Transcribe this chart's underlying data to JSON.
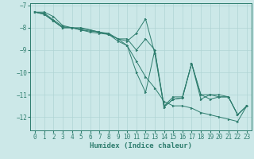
{
  "xlabel": "Humidex (Indice chaleur)",
  "xlim": [
    -0.5,
    23.5
  ],
  "ylim": [
    -12.6,
    -6.9
  ],
  "yticks": [
    -7,
    -8,
    -9,
    -10,
    -11,
    -12
  ],
  "xticks": [
    0,
    1,
    2,
    3,
    4,
    5,
    6,
    7,
    8,
    9,
    10,
    11,
    12,
    13,
    14,
    15,
    16,
    17,
    18,
    19,
    20,
    21,
    22,
    23
  ],
  "bg_color": "#cce8e8",
  "grid_color": "#b0d4d4",
  "line_color": "#2e7d6e",
  "series": [
    {
      "x": [
        0,
        1,
        2,
        3,
        4,
        5,
        6,
        7,
        8,
        9,
        10,
        11,
        12,
        13,
        14,
        15,
        16,
        17,
        18,
        19,
        20,
        21,
        22,
        23
      ],
      "y": [
        -7.3,
        -7.3,
        -7.5,
        -7.9,
        -8.0,
        -8.0,
        -8.1,
        -8.2,
        -8.3,
        -8.5,
        -8.8,
        -9.5,
        -10.2,
        -10.7,
        -11.3,
        -11.5,
        -11.5,
        -11.6,
        -11.8,
        -11.9,
        -12.0,
        -12.1,
        -12.2,
        -11.5
      ]
    },
    {
      "x": [
        0,
        1,
        2,
        3,
        4,
        5,
        6,
        7,
        8,
        9,
        10,
        11,
        12,
        13,
        14,
        15,
        16,
        17,
        18,
        19,
        20,
        21,
        22,
        23
      ],
      "y": [
        -7.3,
        -7.4,
        -7.7,
        -8.0,
        -8.0,
        -8.1,
        -8.2,
        -8.25,
        -8.3,
        -8.6,
        -8.8,
        -10.0,
        -10.9,
        -9.0,
        -11.55,
        -11.2,
        -11.15,
        -9.6,
        -11.2,
        -11.0,
        -11.1,
        -11.1,
        -11.9,
        -11.5
      ]
    },
    {
      "x": [
        0,
        1,
        2,
        3,
        4,
        5,
        6,
        7,
        8,
        9,
        10,
        11,
        12,
        13,
        14,
        15,
        16,
        17,
        18,
        19,
        20,
        21,
        22,
        23
      ],
      "y": [
        -7.3,
        -7.4,
        -7.7,
        -8.0,
        -8.0,
        -8.1,
        -8.15,
        -8.2,
        -8.3,
        -8.5,
        -8.6,
        -8.25,
        -7.6,
        -9.15,
        -11.55,
        -11.2,
        -11.15,
        -9.6,
        -11.0,
        -11.2,
        -11.1,
        -11.1,
        -11.9,
        -11.5
      ]
    },
    {
      "x": [
        0,
        1,
        2,
        3,
        4,
        5,
        6,
        7,
        8,
        9,
        10,
        11,
        12,
        13,
        14,
        15,
        16,
        17,
        18,
        19,
        20,
        21,
        22,
        23
      ],
      "y": [
        -7.3,
        -7.35,
        -7.65,
        -7.95,
        -8.0,
        -8.05,
        -8.1,
        -8.2,
        -8.25,
        -8.5,
        -8.5,
        -9.0,
        -8.5,
        -9.0,
        -11.5,
        -11.1,
        -11.1,
        -9.6,
        -11.0,
        -11.0,
        -11.0,
        -11.1,
        -11.9,
        -11.5
      ]
    }
  ],
  "tick_fontsize": 5.5,
  "label_fontsize": 6.5,
  "linewidth": 0.7,
  "markersize": 2.0
}
